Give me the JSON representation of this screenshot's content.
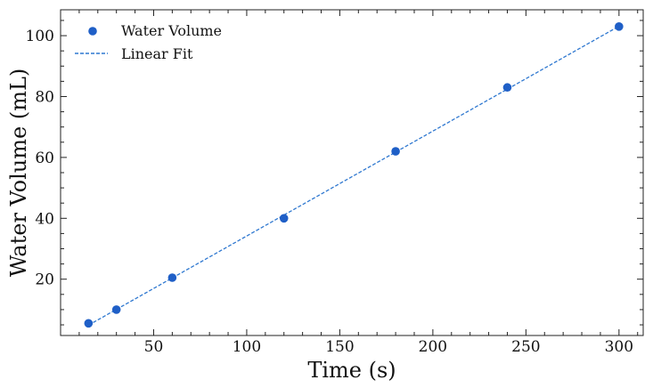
{
  "chart_data": {
    "type": "scatter",
    "title": "",
    "xlabel": "Time (s)",
    "ylabel": "Water Volume (mL)",
    "xlim": [
      0,
      313
    ],
    "ylim": [
      1.5,
      108.5
    ],
    "x_ticks": [
      50,
      100,
      150,
      200,
      250,
      300
    ],
    "y_ticks": [
      20,
      40,
      60,
      80,
      100
    ],
    "grid": false,
    "legend_position": "top-left",
    "series": [
      {
        "name": "Water Volume",
        "kind": "scatter",
        "color": "#1f5fc7",
        "x": [
          15,
          30,
          60,
          120,
          180,
          240,
          300
        ],
        "y": [
          5.5,
          10.0,
          20.5,
          40.0,
          62.0,
          83.0,
          103.0
        ]
      },
      {
        "name": "Linear Fit",
        "kind": "line",
        "style": "dashed",
        "color": "#2f78d0",
        "x": [
          15,
          300
        ],
        "y": [
          4.9,
          103.1
        ]
      }
    ]
  }
}
